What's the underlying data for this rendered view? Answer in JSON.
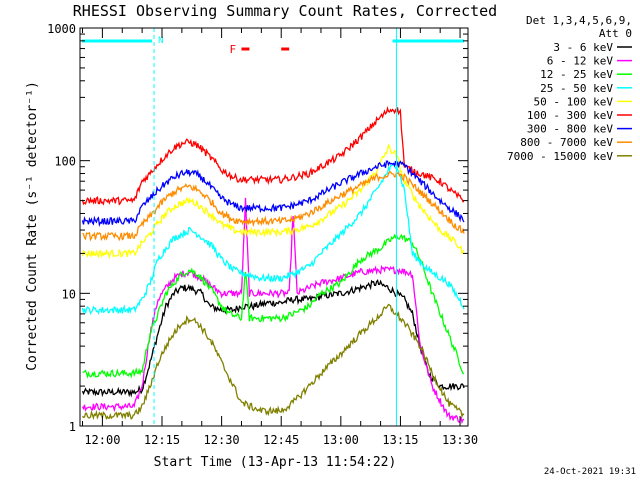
{
  "chart_data": {
    "type": "line",
    "title": "RHESSI Observing Summary Count Rates, Corrected",
    "xlabel": "Start Time (13-Apr-13 11:54:22)",
    "ylabel": "Corrected Count Rate (s⁻¹ detector⁻¹)",
    "x_tick_labels": [
      "12:00",
      "12:15",
      "12:30",
      "12:45",
      "13:00",
      "13:15",
      "13:30"
    ],
    "y_tick_labels": [
      "1",
      "10",
      "100",
      "1000"
    ],
    "x_range": [
      "11:54:22",
      "13:32:00"
    ],
    "y_range": [
      1,
      1000
    ],
    "y_scale": "log",
    "legend_header": [
      "Det 1,3,4,5,6,9,",
      "Att 0"
    ],
    "legend_position": "right",
    "flags": {
      "N_label": "N",
      "F_label": "F"
    },
    "timestamp": "24-Oct-2021 19:31",
    "series": [
      {
        "name": "3 - 6 keV",
        "color": "#000000",
        "points": [
          [
            "11:55",
            1.8
          ],
          [
            "12:08",
            1.8
          ],
          [
            "12:10",
            1.9
          ],
          [
            "12:12",
            3
          ],
          [
            "12:14",
            5
          ],
          [
            "12:16",
            8
          ],
          [
            "12:18",
            10
          ],
          [
            "12:20",
            11
          ],
          [
            "12:22",
            11
          ],
          [
            "12:25",
            10
          ],
          [
            "12:27",
            8
          ],
          [
            "12:30",
            7.5
          ],
          [
            "12:33",
            7.5
          ],
          [
            "12:35",
            8
          ],
          [
            "12:38",
            8
          ],
          [
            "12:42",
            8.5
          ],
          [
            "12:45",
            8.5
          ],
          [
            "12:48",
            9
          ],
          [
            "12:52",
            9
          ],
          [
            "12:55",
            9.5
          ],
          [
            "13:00",
            10
          ],
          [
            "13:05",
            11
          ],
          [
            "13:09",
            12
          ],
          [
            "13:12",
            11
          ],
          [
            "13:14",
            10
          ],
          [
            "13:16",
            9
          ],
          [
            "13:18",
            7
          ],
          [
            "13:20",
            4
          ],
          [
            "13:22",
            2.5
          ],
          [
            "13:25",
            2
          ],
          [
            "13:31",
            2
          ]
        ]
      },
      {
        "name": "6 - 12 keV",
        "color": "#ff00ff",
        "points": [
          [
            "11:55",
            1.4
          ],
          [
            "12:08",
            1.4
          ],
          [
            "12:10",
            2
          ],
          [
            "12:12",
            5
          ],
          [
            "12:14",
            9
          ],
          [
            "12:16",
            11
          ],
          [
            "12:18",
            13
          ],
          [
            "12:20",
            14
          ],
          [
            "12:22",
            14.5
          ],
          [
            "12:25",
            13
          ],
          [
            "12:28",
            11
          ],
          [
            "12:30",
            10
          ],
          [
            "12:35",
            10
          ],
          [
            "12:36",
            50
          ],
          [
            "12:37",
            10
          ],
          [
            "12:40",
            10
          ],
          [
            "12:45",
            10
          ],
          [
            "12:47",
            10
          ],
          [
            "12:48",
            40
          ],
          [
            "12:49",
            10
          ],
          [
            "12:52",
            11
          ],
          [
            "12:55",
            12
          ],
          [
            "13:00",
            13
          ],
          [
            "13:05",
            14.5
          ],
          [
            "13:10",
            15
          ],
          [
            "13:15",
            15
          ],
          [
            "13:18",
            14
          ],
          [
            "13:20",
            4
          ],
          [
            "13:23",
            2
          ],
          [
            "13:27",
            1.2
          ],
          [
            "13:31",
            1.1
          ]
        ]
      },
      {
        "name": "12 - 25 keV",
        "color": "#00ff00",
        "points": [
          [
            "11:55",
            2.5
          ],
          [
            "12:08",
            2.5
          ],
          [
            "12:10",
            2.6
          ],
          [
            "12:12",
            5
          ],
          [
            "12:14",
            7
          ],
          [
            "12:16",
            10
          ],
          [
            "12:18",
            12
          ],
          [
            "12:20",
            14
          ],
          [
            "12:22",
            15
          ],
          [
            "12:24",
            14
          ],
          [
            "12:26",
            12
          ],
          [
            "12:28",
            10
          ],
          [
            "12:30",
            8
          ],
          [
            "12:32",
            7
          ],
          [
            "12:35",
            6.5
          ],
          [
            "12:36",
            15
          ],
          [
            "12:37",
            6.5
          ],
          [
            "12:40",
            6.5
          ],
          [
            "12:45",
            6.5
          ],
          [
            "12:48",
            7
          ],
          [
            "12:52",
            8
          ],
          [
            "12:55",
            10
          ],
          [
            "13:00",
            12
          ],
          [
            "13:05",
            18
          ],
          [
            "13:10",
            22
          ],
          [
            "13:13",
            26
          ],
          [
            "13:15",
            27
          ],
          [
            "13:18",
            24
          ],
          [
            "13:20",
            18
          ],
          [
            "13:23",
            10
          ],
          [
            "13:27",
            5
          ],
          [
            "13:31",
            2.5
          ]
        ]
      },
      {
        "name": "25 - 50 keV",
        "color": "#00ffff",
        "points": [
          [
            "11:55",
            7.5
          ],
          [
            "12:08",
            7.5
          ],
          [
            "12:10",
            9
          ],
          [
            "12:12",
            12
          ],
          [
            "12:14",
            18
          ],
          [
            "12:16",
            22
          ],
          [
            "12:18",
            26
          ],
          [
            "12:20",
            28
          ],
          [
            "12:22",
            30
          ],
          [
            "12:24",
            28
          ],
          [
            "12:26",
            25
          ],
          [
            "12:28",
            22
          ],
          [
            "12:30",
            18
          ],
          [
            "12:33",
            15
          ],
          [
            "12:36",
            14
          ],
          [
            "12:40",
            13
          ],
          [
            "12:45",
            13
          ],
          [
            "12:48",
            14
          ],
          [
            "12:52",
            16
          ],
          [
            "12:55",
            20
          ],
          [
            "13:00",
            28
          ],
          [
            "13:05",
            40
          ],
          [
            "13:09",
            60
          ],
          [
            "13:12",
            85
          ],
          [
            "13:14",
            95
          ],
          [
            "13:16",
            60
          ],
          [
            "13:18",
            20
          ],
          [
            "13:22",
            15
          ],
          [
            "13:27",
            12
          ],
          [
            "13:31",
            8
          ]
        ]
      },
      {
        "name": "50 - 100 keV",
        "color": "#ffff00",
        "points": [
          [
            "11:55",
            20
          ],
          [
            "12:08",
            20
          ],
          [
            "12:10",
            24
          ],
          [
            "12:12",
            28
          ],
          [
            "12:14",
            34
          ],
          [
            "12:16",
            40
          ],
          [
            "12:18",
            45
          ],
          [
            "12:20",
            48
          ],
          [
            "12:22",
            50
          ],
          [
            "12:24",
            47
          ],
          [
            "12:26",
            42
          ],
          [
            "12:28",
            38
          ],
          [
            "12:30",
            33
          ],
          [
            "12:33",
            30
          ],
          [
            "12:35",
            29
          ],
          [
            "12:40",
            29
          ],
          [
            "12:45",
            29
          ],
          [
            "12:48",
            30
          ],
          [
            "12:52",
            32
          ],
          [
            "12:55",
            36
          ],
          [
            "13:00",
            45
          ],
          [
            "13:05",
            60
          ],
          [
            "13:09",
            85
          ],
          [
            "13:12",
            125
          ],
          [
            "13:14",
            110
          ],
          [
            "13:16",
            70
          ],
          [
            "13:20",
            45
          ],
          [
            "13:25",
            30
          ],
          [
            "13:29",
            24
          ],
          [
            "13:31",
            20
          ]
        ]
      },
      {
        "name": "100 - 300 keV",
        "color": "#ff0000",
        "points": [
          [
            "11:55",
            50
          ],
          [
            "12:08",
            50
          ],
          [
            "12:10",
            70
          ],
          [
            "12:12",
            80
          ],
          [
            "12:14",
            95
          ],
          [
            "12:16",
            110
          ],
          [
            "12:18",
            125
          ],
          [
            "12:20",
            135
          ],
          [
            "12:22",
            138
          ],
          [
            "12:24",
            130
          ],
          [
            "12:26",
            115
          ],
          [
            "12:28",
            100
          ],
          [
            "12:30",
            85
          ],
          [
            "12:33",
            75
          ],
          [
            "12:35",
            72
          ],
          [
            "12:40",
            72
          ],
          [
            "12:45",
            72
          ],
          [
            "12:48",
            75
          ],
          [
            "12:52",
            80
          ],
          [
            "12:55",
            90
          ],
          [
            "13:00",
            110
          ],
          [
            "13:05",
            150
          ],
          [
            "13:09",
            200
          ],
          [
            "13:12",
            240
          ],
          [
            "13:14",
            245
          ],
          [
            "13:15",
            230
          ],
          [
            "13:16",
            90
          ],
          [
            "13:20",
            80
          ],
          [
            "13:25",
            70
          ],
          [
            "13:29",
            55
          ],
          [
            "13:31",
            50
          ]
        ]
      },
      {
        "name": "300 - 800 keV",
        "color": "#0000ff",
        "points": [
          [
            "11:55",
            35
          ],
          [
            "12:08",
            35
          ],
          [
            "12:10",
            45
          ],
          [
            "12:12",
            52
          ],
          [
            "12:14",
            60
          ],
          [
            "12:16",
            68
          ],
          [
            "12:18",
            75
          ],
          [
            "12:20",
            80
          ],
          [
            "12:22",
            82
          ],
          [
            "12:24",
            78
          ],
          [
            "12:26",
            70
          ],
          [
            "12:28",
            60
          ],
          [
            "12:30",
            52
          ],
          [
            "12:33",
            46
          ],
          [
            "12:35",
            44
          ],
          [
            "12:40",
            44
          ],
          [
            "12:45",
            44
          ],
          [
            "12:48",
            46
          ],
          [
            "12:52",
            50
          ],
          [
            "12:55",
            56
          ],
          [
            "13:00",
            68
          ],
          [
            "13:05",
            80
          ],
          [
            "13:09",
            90
          ],
          [
            "13:12",
            95
          ],
          [
            "13:14",
            95
          ],
          [
            "13:16",
            92
          ],
          [
            "13:20",
            70
          ],
          [
            "13:25",
            50
          ],
          [
            "13:29",
            40
          ],
          [
            "13:31",
            36
          ]
        ]
      },
      {
        "name": "800 - 7000 keV",
        "color": "#ff8c00",
        "points": [
          [
            "11:55",
            27
          ],
          [
            "12:08",
            27
          ],
          [
            "12:10",
            33
          ],
          [
            "12:12",
            38
          ],
          [
            "12:14",
            45
          ],
          [
            "12:16",
            52
          ],
          [
            "12:18",
            58
          ],
          [
            "12:20",
            62
          ],
          [
            "12:22",
            64
          ],
          [
            "12:24",
            60
          ],
          [
            "12:26",
            54
          ],
          [
            "12:28",
            47
          ],
          [
            "12:30",
            40
          ],
          [
            "12:33",
            36
          ],
          [
            "12:35",
            35
          ],
          [
            "12:40",
            35
          ],
          [
            "12:45",
            35
          ],
          [
            "12:48",
            36
          ],
          [
            "12:52",
            40
          ],
          [
            "12:55",
            45
          ],
          [
            "13:00",
            55
          ],
          [
            "13:05",
            65
          ],
          [
            "13:09",
            75
          ],
          [
            "13:12",
            78
          ],
          [
            "13:14",
            80
          ],
          [
            "13:16",
            75
          ],
          [
            "13:20",
            58
          ],
          [
            "13:25",
            42
          ],
          [
            "13:29",
            32
          ],
          [
            "13:31",
            29
          ]
        ]
      },
      {
        "name": "7000 - 15000 keV",
        "color": "#808000",
        "points": [
          [
            "11:55",
            1.2
          ],
          [
            "12:08",
            1.2
          ],
          [
            "12:10",
            1.4
          ],
          [
            "12:12",
            2
          ],
          [
            "12:14",
            3
          ],
          [
            "12:16",
            4
          ],
          [
            "12:18",
            5
          ],
          [
            "12:20",
            6
          ],
          [
            "12:22",
            6.5
          ],
          [
            "12:24",
            6
          ],
          [
            "12:26",
            5
          ],
          [
            "12:28",
            4
          ],
          [
            "12:30",
            3
          ],
          [
            "12:33",
            2
          ],
          [
            "12:35",
            1.5
          ],
          [
            "12:40",
            1.3
          ],
          [
            "12:45",
            1.3
          ],
          [
            "12:48",
            1.5
          ],
          [
            "12:52",
            2
          ],
          [
            "12:55",
            2.5
          ],
          [
            "13:00",
            3.5
          ],
          [
            "13:05",
            5
          ],
          [
            "13:09",
            6.5
          ],
          [
            "13:12",
            8
          ],
          [
            "13:14",
            7
          ],
          [
            "13:16",
            6
          ],
          [
            "13:20",
            4
          ],
          [
            "13:23",
            2.5
          ],
          [
            "13:27",
            1.5
          ],
          [
            "13:31",
            1.2
          ]
        ]
      }
    ],
    "attenuator_lines": [
      "12:13",
      "13:14"
    ],
    "saa_lines": [
      "13:14"
    ],
    "n_flag_intervals": [
      [
        "11:54:22",
        "12:12:30"
      ],
      [
        "13:12:30",
        "13:31:00"
      ]
    ],
    "f_flag_intervals": [
      [
        "12:35",
        "12:37"
      ],
      [
        "12:45",
        "12:47"
      ]
    ]
  }
}
